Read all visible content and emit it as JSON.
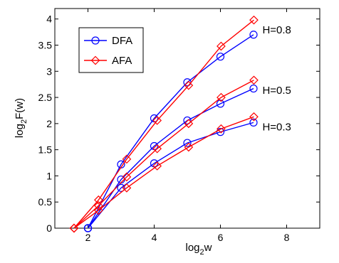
{
  "chart_data": {
    "type": "line",
    "title": "",
    "xlabel": {
      "base": "log",
      "sub": "2",
      "rest": "w"
    },
    "ylabel": {
      "base": "log",
      "sub": "2",
      "rest": "F(w)"
    },
    "xlim": [
      1,
      9
    ],
    "ylim": [
      0,
      4.2
    ],
    "xticks": [
      2,
      4,
      6,
      8
    ],
    "xtick_labels": [
      "2",
      "4",
      "6",
      "8"
    ],
    "yticks": [
      0,
      0.5,
      1,
      1.5,
      2,
      2.5,
      3,
      3.5,
      4
    ],
    "ytick_labels": [
      "0",
      "0.5",
      "1",
      "1.5",
      "2",
      "2.5",
      "3",
      "3.5",
      "4"
    ],
    "grid": false,
    "legend": {
      "placement": "top-left",
      "entries": [
        "DFA",
        "AFA"
      ]
    },
    "annotations": [
      "H=0.8",
      "H=0.5",
      "H=0.3"
    ],
    "series": [
      {
        "name": "DFA",
        "group": "H=0.8",
        "x": [
          2,
          3,
          4,
          5,
          6,
          7
        ],
        "y": [
          0,
          1.22,
          2.1,
          2.79,
          3.28,
          3.7
        ]
      },
      {
        "name": "AFA",
        "group": "H=0.8",
        "x": [
          1.58,
          2.32,
          3.17,
          4.09,
          5.04,
          6.02,
          7.01
        ],
        "y": [
          0,
          0.54,
          1.32,
          2.06,
          2.73,
          3.48,
          3.98
        ]
      },
      {
        "name": "DFA",
        "group": "H=0.5",
        "x": [
          2,
          3,
          4,
          5,
          6,
          7
        ],
        "y": [
          0,
          0.93,
          1.57,
          2.06,
          2.38,
          2.67
        ]
      },
      {
        "name": "AFA",
        "group": "H=0.5",
        "x": [
          1.58,
          2.32,
          3.17,
          4.09,
          5.04,
          6.02,
          7.01
        ],
        "y": [
          0,
          0.43,
          0.98,
          1.52,
          2.0,
          2.5,
          2.83
        ]
      },
      {
        "name": "DFA",
        "group": "H=0.3",
        "x": [
          2,
          3,
          4,
          5,
          6,
          7
        ],
        "y": [
          0,
          0.77,
          1.24,
          1.63,
          1.84,
          2.02
        ]
      },
      {
        "name": "AFA",
        "group": "H=0.3",
        "x": [
          1.58,
          2.32,
          3.17,
          4.09,
          5.04,
          6.02,
          7.01
        ],
        "y": [
          0,
          0.34,
          0.77,
          1.19,
          1.55,
          1.9,
          2.13
        ]
      }
    ],
    "colors": {
      "DFA": "#0000ff",
      "AFA": "#ff0000"
    },
    "markers": {
      "DFA": "circle",
      "AFA": "diamond"
    }
  }
}
